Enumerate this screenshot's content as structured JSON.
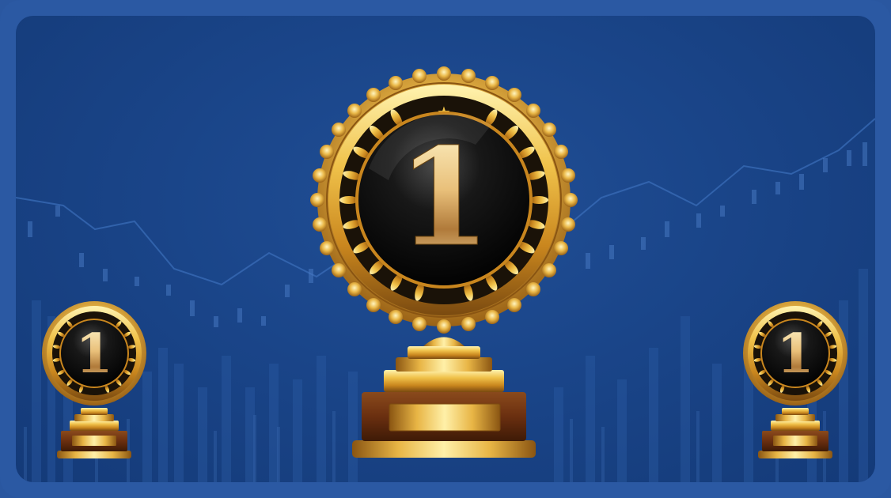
{
  "scene": {
    "frame_color": "#2b59a3",
    "background_colors": [
      "#214f96",
      "#1a4589",
      "#143a78"
    ],
    "gold_colors": [
      "#fff3b0",
      "#f0c24a",
      "#c9861e",
      "#7a4a10"
    ],
    "wood_colors": [
      "#7a3b16",
      "#4a2009"
    ]
  },
  "trophies": {
    "center": {
      "number": "1"
    },
    "left": {
      "number": "1"
    },
    "right": {
      "number": "1"
    }
  }
}
